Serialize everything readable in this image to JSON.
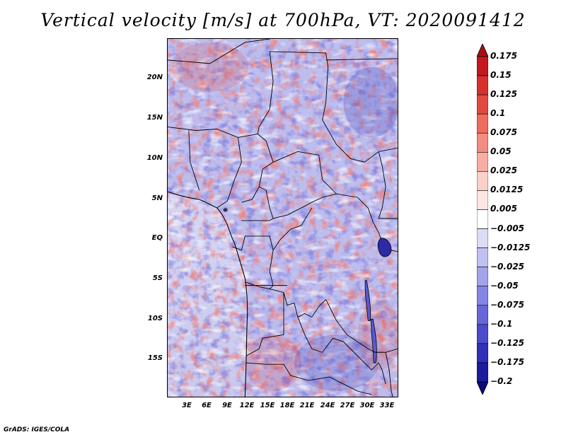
{
  "title": "Vertical velocity [m/s] at 700hPa, VT: 2020091412",
  "credit": "GrADS: IGES/COLA",
  "map": {
    "variable": "vertical velocity",
    "units": "m/s",
    "level": "700hPa",
    "valid_time": "2020091412",
    "lon_range": [
      0,
      34.5
    ],
    "lat_range": [
      -20.5,
      24.5
    ],
    "lat_labels": [
      "20N",
      "15N",
      "10N",
      "5N",
      "EQ",
      "5S",
      "10S",
      "15S"
    ],
    "lon_labels": [
      "3E",
      "6E",
      "9E",
      "12E",
      "15E",
      "18E",
      "21E",
      "24E",
      "27E",
      "30E",
      "33E"
    ]
  },
  "colorbar": {
    "levels": [
      "0.175",
      "0.15",
      "0.125",
      "0.1",
      "0.075",
      "0.05",
      "0.025",
      "0.0125",
      "0.005",
      "−0.005",
      "−0.0125",
      "−0.025",
      "−0.05",
      "−0.075",
      "−0.1",
      "−0.125",
      "−0.175",
      "−0.2"
    ],
    "colors": [
      "#a50f15",
      "#c1191f",
      "#d7302c",
      "#e34a3f",
      "#ee6c5c",
      "#f28d7f",
      "#f6ada2",
      "#fad0c8",
      "#fde6e2",
      "#ffffff",
      "#dcdcf7",
      "#c0c0f2",
      "#a3a3ec",
      "#8585e3",
      "#6767d9",
      "#4b4bcc",
      "#3030b8",
      "#1c1c9c",
      "#0c0c78"
    ]
  }
}
